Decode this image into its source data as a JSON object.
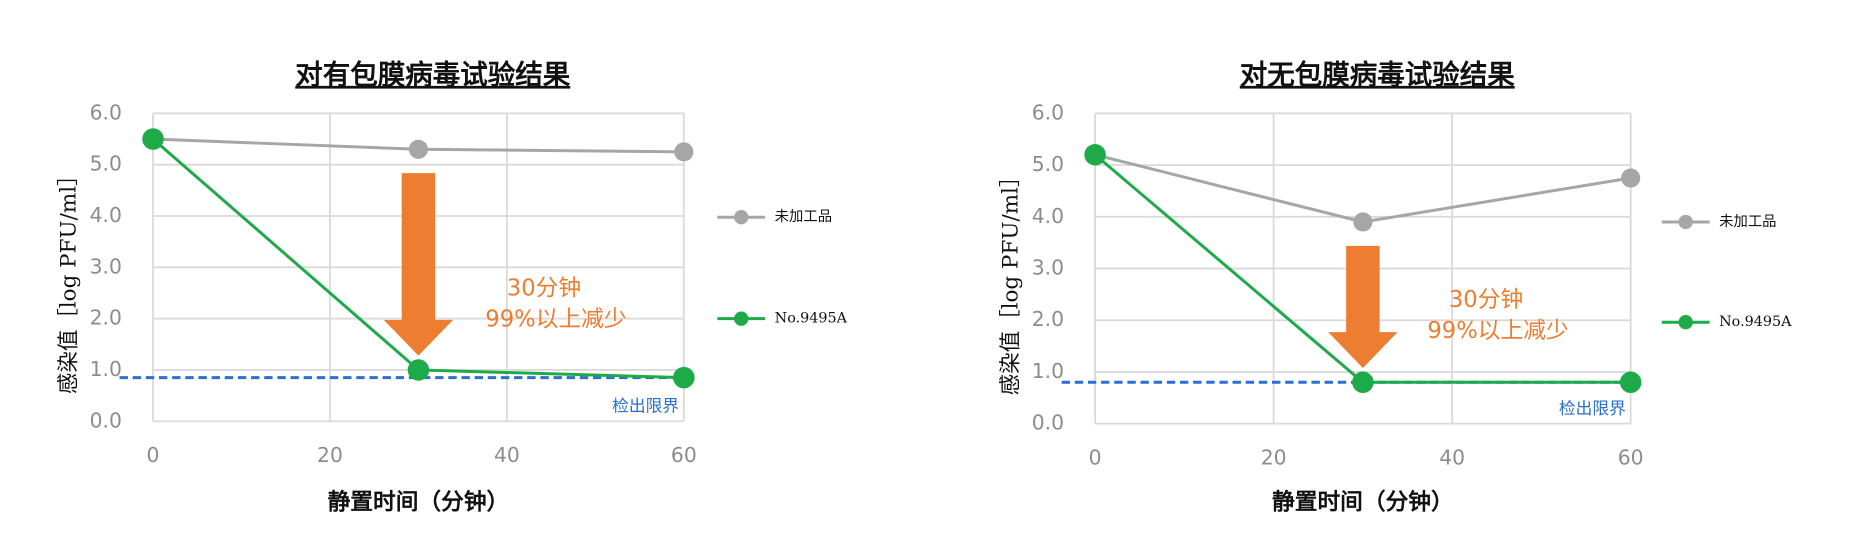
{
  "chart_data": [
    {
      "type": "line",
      "title": "对有包膜病毒试验结果",
      "x_label": "静置时间（分钟）",
      "y_label": "感染值［log PFU/ml］",
      "x": [
        0,
        30,
        60
      ],
      "xlim": [
        0,
        60
      ],
      "xticks": [
        0,
        20,
        40,
        60
      ],
      "ylim": [
        0,
        6
      ],
      "yticks": [
        {
          "value": 0,
          "label": "0.0"
        },
        {
          "value": 1,
          "label": "1.0"
        },
        {
          "value": 2,
          "label": "2.0"
        },
        {
          "value": 3,
          "label": "3.0"
        },
        {
          "value": 4,
          "label": "4.0"
        },
        {
          "value": 5,
          "label": "5.0"
        },
        {
          "value": 6,
          "label": "6.0"
        }
      ],
      "grid": true,
      "series": [
        {
          "name": "未加工品",
          "color": "#a6a6a6",
          "values": [
            5.5,
            5.3,
            5.25
          ]
        },
        {
          "name": "No.9495A",
          "color": "#1faa4a",
          "values": [
            5.5,
            1.0,
            0.85
          ]
        }
      ],
      "detection_limit": {
        "value": 0.85,
        "label": "检出限界",
        "color": "#2a6fd1"
      },
      "annotations": [
        "30分钟",
        "99%以上减少"
      ],
      "annotation_color": "#ed7d31"
    },
    {
      "type": "line",
      "title": "对无包膜病毒试验结果",
      "x_label": "静置时间（分钟）",
      "y_label": "感染值［log PFU/ml］",
      "x": [
        0,
        30,
        60
      ],
      "xlim": [
        0,
        60
      ],
      "xticks": [
        0,
        20,
        40,
        60
      ],
      "ylim": [
        0,
        6
      ],
      "yticks": [
        {
          "value": 0,
          "label": "0.0"
        },
        {
          "value": 1,
          "label": "1.0"
        },
        {
          "value": 2,
          "label": "2.0"
        },
        {
          "value": 3,
          "label": "3.0"
        },
        {
          "value": 4,
          "label": "4.0"
        },
        {
          "value": 5,
          "label": "5.0"
        },
        {
          "value": 6,
          "label": "6.0"
        }
      ],
      "grid": true,
      "series": [
        {
          "name": "未加工品",
          "color": "#a6a6a6",
          "values": [
            5.2,
            3.9,
            4.75
          ]
        },
        {
          "name": "No.9495A",
          "color": "#1faa4a",
          "values": [
            5.2,
            0.8,
            0.8
          ]
        }
      ],
      "detection_limit": {
        "value": 0.8,
        "label": "检出限界",
        "color": "#2a6fd1"
      },
      "annotations": [
        "30分钟",
        "99%以上减少"
      ],
      "annotation_color": "#ed7d31"
    }
  ]
}
